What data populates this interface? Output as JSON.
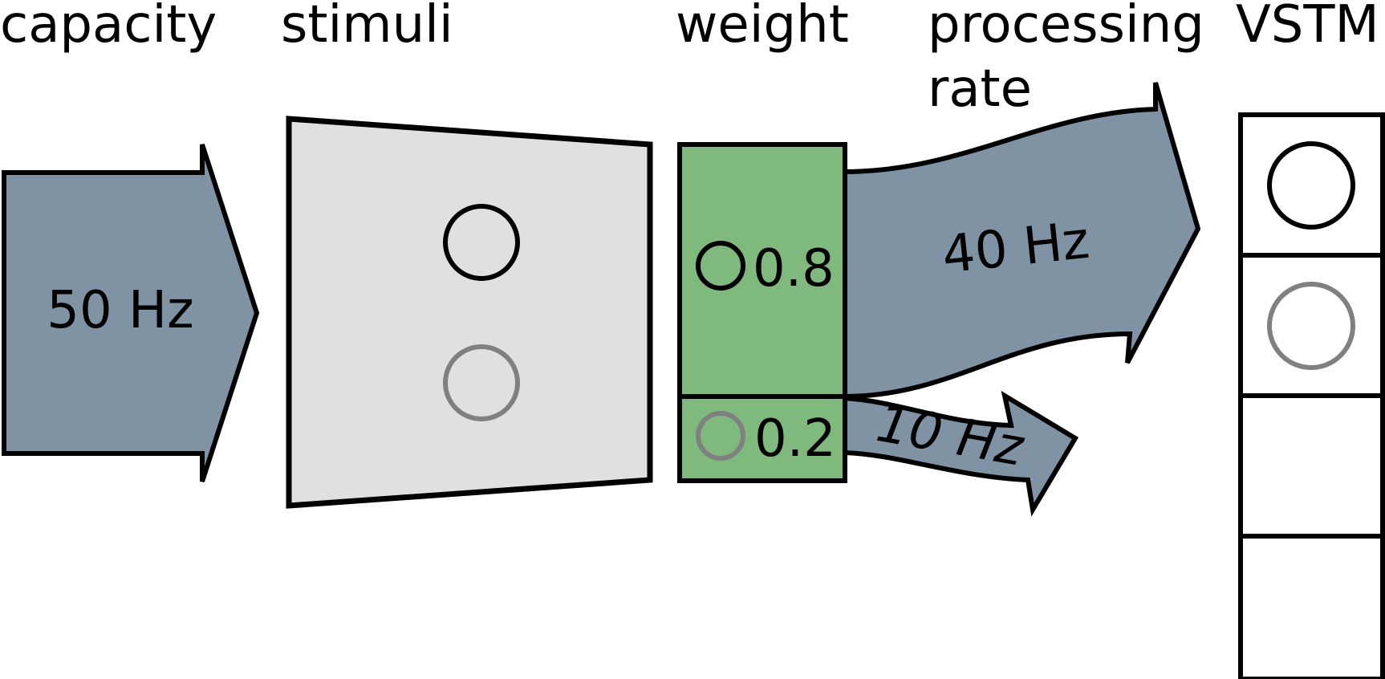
{
  "headers": {
    "capacity": "capacity",
    "stimuli": "stimuli",
    "weight": "weight",
    "processing_rate_line1": "processing",
    "processing_rate_line2": "rate",
    "vstm": "VSTM"
  },
  "capacity": {
    "value": "50 Hz"
  },
  "weights": [
    {
      "value": "0.8",
      "stimulus_color": "black"
    },
    {
      "value": "0.2",
      "stimulus_color": "gray"
    }
  ],
  "rates": [
    {
      "value": "40 Hz"
    },
    {
      "value": "10 Hz"
    }
  ],
  "vstm": {
    "slots": 4,
    "filled": [
      "black",
      "gray"
    ]
  },
  "colors": {
    "arrow_fill": "#7f93a4",
    "stimuli_fill": "#e0e0e0",
    "weight_fill": "#80b97e",
    "outline": "#000000",
    "stimulus_black": "#000000",
    "stimulus_gray": "#808080"
  }
}
